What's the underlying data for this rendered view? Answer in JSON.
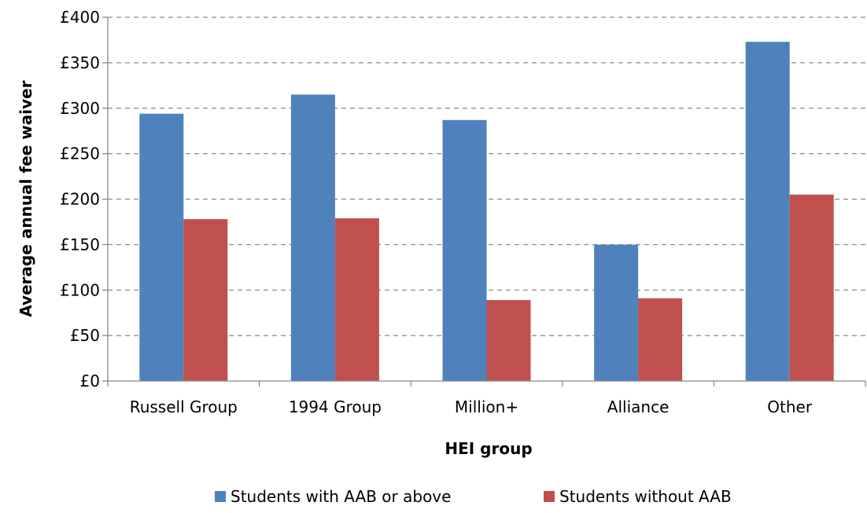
{
  "chart_data": {
    "type": "bar",
    "title": "",
    "xlabel": "HEI group",
    "ylabel": "Average annual fee waiver",
    "categories": [
      "Russell Group",
      "1994 Group",
      "Million+",
      "Alliance",
      "Other"
    ],
    "series": [
      {
        "name": "Students with AAB or above",
        "color": "#4F81BD",
        "values": [
          294,
          315,
          287,
          150,
          373
        ]
      },
      {
        "name": "Students without AAB",
        "color": "#C0504D",
        "values": [
          178,
          179,
          89,
          91,
          205
        ]
      }
    ],
    "ylim": [
      0,
      400
    ],
    "ytick_values": [
      0,
      50,
      100,
      150,
      200,
      250,
      300,
      350,
      400
    ],
    "ytick_labels": [
      "£0",
      "£50",
      "£100",
      "£150",
      "£200",
      "£250",
      "£300",
      "£350",
      "£400"
    ],
    "grid": "horizontal dashed",
    "legend_position": "bottom"
  }
}
